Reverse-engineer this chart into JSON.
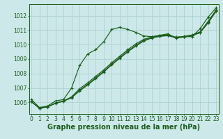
{
  "background_color": "#cce8e8",
  "grid_color": "#aacece",
  "line_color": "#1a5c1a",
  "xlabel": "Graphe pression niveau de la mer (hPa)",
  "ylim": [
    1005.2,
    1012.8
  ],
  "xlim": [
    -0.3,
    23.3
  ],
  "yticks": [
    1006,
    1007,
    1008,
    1009,
    1010,
    1011,
    1012
  ],
  "xticks": [
    0,
    1,
    2,
    3,
    4,
    5,
    6,
    7,
    8,
    9,
    10,
    11,
    12,
    13,
    14,
    15,
    16,
    17,
    18,
    19,
    20,
    21,
    22,
    23
  ],
  "series": [
    [
      1006.2,
      1005.65,
      1005.75,
      1006.1,
      1006.2,
      1007.0,
      1008.55,
      1009.35,
      1009.65,
      1010.2,
      1011.05,
      1011.2,
      1011.05,
      1010.85,
      1010.6,
      1010.55,
      1010.65,
      1010.75,
      1010.45,
      1010.55,
      1010.55,
      1011.1,
      1011.9,
      1012.55
    ],
    [
      1006.05,
      1005.6,
      1005.7,
      1005.95,
      1006.1,
      1006.35,
      1006.85,
      1007.25,
      1007.7,
      1008.15,
      1008.65,
      1009.1,
      1009.55,
      1009.95,
      1010.3,
      1010.5,
      1010.6,
      1010.65,
      1010.5,
      1010.55,
      1010.65,
      1010.85,
      1011.55,
      1012.35
    ],
    [
      1006.05,
      1005.6,
      1005.7,
      1005.95,
      1006.1,
      1006.38,
      1006.95,
      1007.35,
      1007.8,
      1008.25,
      1008.75,
      1009.2,
      1009.65,
      1010.05,
      1010.37,
      1010.54,
      1010.63,
      1010.67,
      1010.52,
      1010.57,
      1010.67,
      1010.88,
      1011.6,
      1012.4
    ],
    [
      1006.05,
      1005.6,
      1005.7,
      1005.93,
      1006.08,
      1006.32,
      1006.8,
      1007.2,
      1007.65,
      1008.1,
      1008.6,
      1009.05,
      1009.5,
      1009.9,
      1010.25,
      1010.46,
      1010.57,
      1010.62,
      1010.47,
      1010.52,
      1010.62,
      1010.82,
      1011.5,
      1012.3
    ]
  ],
  "marker": "+",
  "markersize": 3,
  "linewidth": 0.85,
  "markeredgewidth": 0.85,
  "xlabel_fontsize": 7,
  "tick_fontsize": 5.5
}
